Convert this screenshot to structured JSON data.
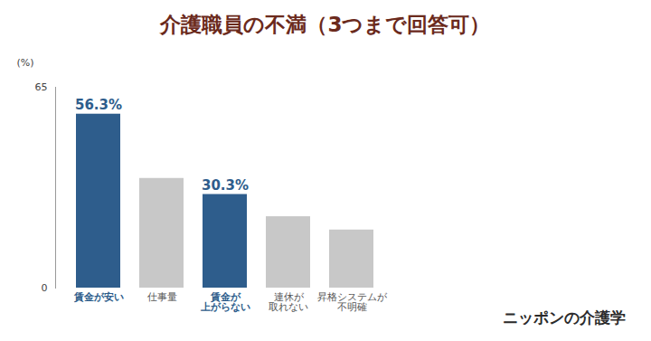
{
  "chart_data": {
    "type": "bar",
    "title": "介護職員の不満（3つまで回答可）",
    "categories": [
      "賃金が安い",
      "仕事量",
      "賃金が\n上がらない",
      "連休が\n取れない",
      "昇格システムが\n不明確"
    ],
    "values": [
      56.3,
      35.5,
      30.3,
      23.1,
      18.8
    ],
    "value_labels": [
      "56.3%",
      null,
      "30.3%",
      null,
      null
    ],
    "data_labels": true,
    "colors": [
      "#2e5d8c",
      "#c8c8c8",
      "#2e5d8c",
      "#c8c8c8",
      "#c8c8c8"
    ],
    "ylabel": "(%)",
    "ylim": [
      0,
      65
    ],
    "yticks": [
      0,
      65
    ],
    "grid": false,
    "annotations": [
      "ニッポンの介護学"
    ]
  }
}
